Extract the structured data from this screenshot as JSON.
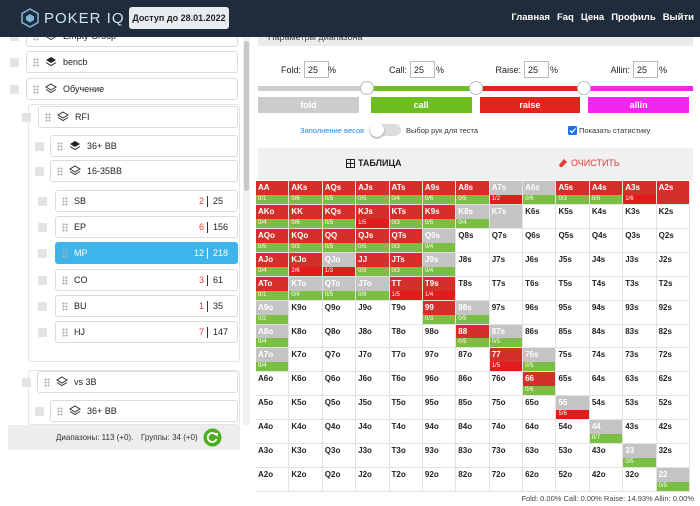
{
  "header": {
    "logo": "POKER IQ",
    "access": "Доступ до 28.01.2022",
    "nav": [
      "Главная",
      "Faq",
      "Цена",
      "Профиль",
      "Выйти"
    ]
  },
  "sidebar": {
    "items": [
      {
        "label": "Empty Group"
      },
      {
        "label": "bencb"
      },
      {
        "label": "Обучение"
      },
      {
        "label": "RFI"
      },
      {
        "label": "36+ BB"
      },
      {
        "label": "16-35BB"
      },
      {
        "label": "SB",
        "wrong": 2,
        "total": 25
      },
      {
        "label": "EP",
        "wrong": 6,
        "total": 156
      },
      {
        "label": "MP",
        "wrong": 12,
        "total": 218
      },
      {
        "label": "CO",
        "wrong": 3,
        "total": 61
      },
      {
        "label": "BU",
        "wrong": 1,
        "total": 35
      },
      {
        "label": "HJ",
        "wrong": 7,
        "total": 147
      },
      {
        "label": "vs 3B"
      },
      {
        "label": "36+ BB"
      }
    ],
    "ranges": "Диапазоны: 113 (+0).",
    "groups": "Группы: 34 (+0)"
  },
  "panel": {
    "title": "Параметры диапазона",
    "params": [
      {
        "label": "Fold:",
        "value": 25,
        "unit": "%",
        "color": "#cccccc"
      },
      {
        "label": "Call:",
        "value": 25,
        "unit": "%",
        "color": "#6cbf1e"
      },
      {
        "label": "Raise:",
        "value": 25,
        "unit": "%",
        "color": "#e0251c"
      },
      {
        "label": "Allin:",
        "value": 25,
        "unit": "%",
        "color": "#f226ee"
      }
    ],
    "buttons": [
      "fold",
      "call",
      "raise",
      "allin"
    ],
    "weights": "Заполнение весов",
    "test": "Выбор рук для теста",
    "show_stats": "Показать статистику",
    "table": "ТАБЛИЦА",
    "clear": "ОЧИСТИТЬ",
    "summary": "Fold: 0.00% Call: 0.00% Raise: 14.93% Allin: 0.00%"
  },
  "grid": {
    "hands": [
      [
        "AA",
        "AKs",
        "AQs",
        "AJs",
        "ATs",
        "A9s",
        "A8s",
        "A7s",
        "A6s",
        "A5s",
        "A4s",
        "A3s",
        "A2s"
      ],
      [
        "AKo",
        "KK",
        "KQs",
        "KJs",
        "KTs",
        "K9s",
        "K8s",
        "K7s",
        "K6s",
        "K5s",
        "K4s",
        "K3s",
        "K2s"
      ],
      [
        "AQo",
        "KQo",
        "QQ",
        "QJs",
        "QTs",
        "Q9s",
        "Q8s",
        "Q7s",
        "Q6s",
        "Q5s",
        "Q4s",
        "Q3s",
        "Q2s"
      ],
      [
        "AJo",
        "KJo",
        "QJo",
        "JJ",
        "JTs",
        "J9s",
        "J8s",
        "J7s",
        "J6s",
        "J5s",
        "J4s",
        "J3s",
        "J2s"
      ],
      [
        "ATo",
        "KTo",
        "QTo",
        "JTo",
        "TT",
        "T9s",
        "T8s",
        "T7s",
        "T6s",
        "T5s",
        "T4s",
        "T3s",
        "T2s"
      ],
      [
        "A9o",
        "K9o",
        "Q9o",
        "J9o",
        "T9o",
        "99",
        "98s",
        "97s",
        "96s",
        "95s",
        "94s",
        "93s",
        "92s"
      ],
      [
        "A8o",
        "K8o",
        "Q8o",
        "J8o",
        "T8o",
        "98o",
        "88",
        "87s",
        "86s",
        "85s",
        "84s",
        "83s",
        "82s"
      ],
      [
        "A7o",
        "K7o",
        "Q7o",
        "J7o",
        "T7o",
        "97o",
        "87o",
        "77",
        "76s",
        "75s",
        "74s",
        "73s",
        "72s"
      ],
      [
        "A6o",
        "K6o",
        "Q6o",
        "J6o",
        "T6o",
        "96o",
        "86o",
        "76o",
        "66",
        "65s",
        "64s",
        "63s",
        "62s"
      ],
      [
        "A5o",
        "K5o",
        "Q5o",
        "J5o",
        "T5o",
        "95o",
        "85o",
        "75o",
        "65o",
        "55",
        "54s",
        "53s",
        "52s"
      ],
      [
        "A4o",
        "K4o",
        "Q4o",
        "J4o",
        "T4o",
        "94o",
        "84o",
        "74o",
        "64o",
        "54o",
        "44",
        "43s",
        "42s"
      ],
      [
        "A3o",
        "K3o",
        "Q3o",
        "J3o",
        "T3o",
        "93o",
        "83o",
        "73o",
        "63o",
        "53o",
        "43o",
        "33",
        "32s"
      ],
      [
        "A2o",
        "K2o",
        "Q2o",
        "J2o",
        "T2o",
        "92o",
        "82o",
        "72o",
        "62o",
        "52o",
        "42o",
        "32o",
        "22"
      ]
    ],
    "state": [
      "rrrrrrrggrrrr",
      "rrrrrrggwwwww",
      "rrrrrgwwwwwww",
      "rrgrrgwwwwwww",
      "rgggrrwwwwwww",
      "gwwwwrgwwwwww",
      "gwwwwwrgwwwww",
      "gwwwwwwrgwwww",
      "wwwwwwwwrwwww",
      "wwwwwwwwwgwww",
      "wwwwwwwwwwgww",
      "wwwwwwwwwwwgw",
      "wwwwwwwwwwwwg"
    ],
    "stats": [
      [
        "0/1",
        "0/6",
        "0/5",
        "0/5",
        "0/4",
        "0/6",
        "0/5",
        "1/2",
        "0/6",
        "0/3",
        "0/5",
        "1/6",
        null
      ],
      [
        "0/4",
        "0/6",
        "0/5",
        "1/5",
        "0/3",
        "0/5",
        "0/4",
        null,
        null,
        null,
        null,
        null,
        null
      ],
      [
        "0/5",
        "0/3",
        "0/5",
        "0/5",
        "0/3",
        "0/4",
        null,
        null,
        null,
        null,
        null,
        null,
        null
      ],
      [
        "0/4",
        "2/6",
        "1/3",
        "0/3",
        "0/3",
        "0/4",
        null,
        null,
        null,
        null,
        null,
        null,
        null
      ],
      [
        "0/1",
        "0/4",
        "0/5",
        "0/9",
        "1/5",
        "1/4",
        null,
        null,
        null,
        null,
        null,
        null,
        null
      ],
      [
        "0/2",
        null,
        null,
        null,
        null,
        "0/3",
        "0/5",
        null,
        null,
        null,
        null,
        null,
        null
      ],
      [
        "0/4",
        null,
        null,
        null,
        null,
        null,
        "0/5",
        "0/5",
        null,
        null,
        null,
        null,
        null
      ],
      [
        "0/4",
        null,
        null,
        null,
        null,
        null,
        null,
        "1/5",
        "0/5",
        null,
        null,
        null,
        null
      ],
      [
        null,
        null,
        null,
        null,
        null,
        null,
        null,
        null,
        "0/6",
        null,
        null,
        null,
        null
      ],
      [
        null,
        null,
        null,
        null,
        null,
        null,
        null,
        null,
        null,
        "5/6",
        null,
        null,
        null
      ],
      [
        null,
        null,
        null,
        null,
        null,
        null,
        null,
        null,
        null,
        null,
        "0/7",
        null,
        null
      ],
      [
        null,
        null,
        null,
        null,
        null,
        null,
        null,
        null,
        null,
        null,
        null,
        "0/5",
        null
      ],
      [
        null,
        null,
        null,
        null,
        null,
        null,
        null,
        null,
        null,
        null,
        null,
        null,
        "0/5"
      ]
    ]
  }
}
